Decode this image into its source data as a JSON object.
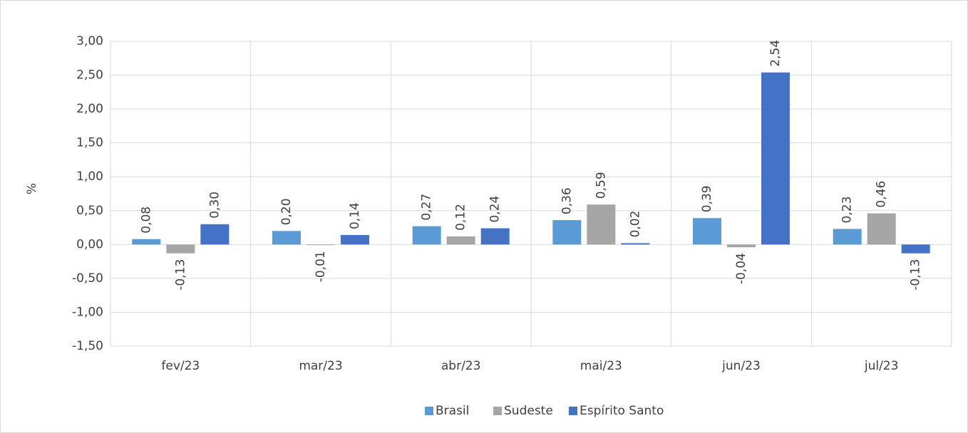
{
  "chart_data": {
    "type": "bar",
    "y_label": "%",
    "categories": [
      "fev/23",
      "mar/23",
      "abr/23",
      "mai/23",
      "jun/23",
      "jul/23"
    ],
    "series": [
      {
        "name": "Brasil",
        "color": "#5b9bd5",
        "values": [
          0.08,
          0.2,
          0.27,
          0.36,
          0.39,
          0.23
        ],
        "value_labels": [
          "0,08",
          "0,20",
          "0,27",
          "0,36",
          "0,39",
          "0,23"
        ]
      },
      {
        "name": "Sudeste",
        "color": "#a5a5a5",
        "values": [
          -0.13,
          -0.01,
          0.12,
          0.59,
          -0.04,
          0.46
        ],
        "value_labels": [
          "-0,13",
          "-0,01",
          "0,12",
          "0,59",
          "-0,04",
          "0,46"
        ]
      },
      {
        "name": "Espírito Santo",
        "color": "#4472c4",
        "values": [
          0.3,
          0.14,
          0.24,
          0.02,
          2.54,
          -0.13
        ],
        "value_labels": [
          "0,30",
          "0,14",
          "0,24",
          "0,02",
          "2,54",
          "-0,13"
        ]
      }
    ],
    "ylim": [
      -1.5,
      3
    ],
    "yticks": [
      {
        "value": -1.5,
        "label": "-1,50"
      },
      {
        "value": -1,
        "label": "-1,00"
      },
      {
        "value": -0.5,
        "label": "-0,50"
      },
      {
        "value": 0,
        "label": "0,00"
      },
      {
        "value": 0.5,
        "label": "0,50"
      },
      {
        "value": 1,
        "label": "1,00"
      },
      {
        "value": 1.5,
        "label": "1,50"
      },
      {
        "value": 2,
        "label": "2,00"
      },
      {
        "value": 2.5,
        "label": "2,50"
      },
      {
        "value": 3,
        "label": "3,00"
      }
    ],
    "grid": true,
    "legend": "bottom"
  }
}
